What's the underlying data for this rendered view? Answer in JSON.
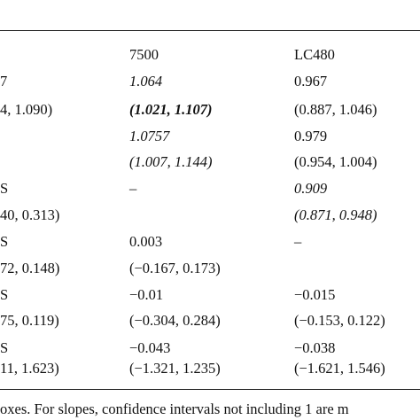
{
  "table": {
    "header": {
      "col1": "7500",
      "col2": "LC480"
    },
    "rows": [
      {
        "label": "7",
        "col1": "1.064",
        "col2": "0.967",
        "col1_style": "italic",
        "col2_style": "normal"
      },
      {
        "label": "4, 1.090)",
        "col1": "(1.021, 1.107)",
        "col2": "(0.887, 1.046)",
        "col1_style": "bold-italic",
        "col2_style": "normal"
      },
      {
        "label": "",
        "col1": "1.0757",
        "col2": "0.979",
        "col1_style": "italic",
        "col2_style": "normal"
      },
      {
        "label": "",
        "col1": "(1.007, 1.144)",
        "col2": "(0.954, 1.004)",
        "col1_style": "italic",
        "col2_style": "normal"
      },
      {
        "label": "S",
        "col1": "–",
        "col2": "0.909",
        "col1_style": "normal",
        "col2_style": "italic"
      },
      {
        "label": "40, 0.313)",
        "col1": "",
        "col2": "(0.871, 0.948)",
        "col1_style": "normal",
        "col2_style": "italic"
      },
      {
        "label": "S",
        "col1": "0.003",
        "col2": "–",
        "col1_style": "normal",
        "col2_style": "normal"
      },
      {
        "label": "72, 0.148)",
        "col1": "(−0.167, 0.173)",
        "col2": "",
        "col1_style": "normal",
        "col2_style": "normal"
      },
      {
        "label": "S",
        "col1": "−0.01",
        "col2": "−0.015",
        "col1_style": "normal",
        "col2_style": "normal"
      },
      {
        "label": "75, 0.119)",
        "col1": "(−0.304, 0.284)",
        "col2": "(−0.153, 0.122)",
        "col1_style": "normal",
        "col2_style": "normal"
      },
      {
        "label": "S",
        "col1": "−0.043",
        "col2": "−0.038",
        "col1_style": "normal",
        "col2_style": "normal"
      },
      {
        "label": "11, 1.623)",
        "col1": "(−1.321, 1.235)",
        "col2": "(−1.621, 1.546)",
        "col1_style": "normal",
        "col2_style": "normal"
      }
    ]
  },
  "footnote": "oxes. For slopes, confidence intervals not including 1 are m"
}
